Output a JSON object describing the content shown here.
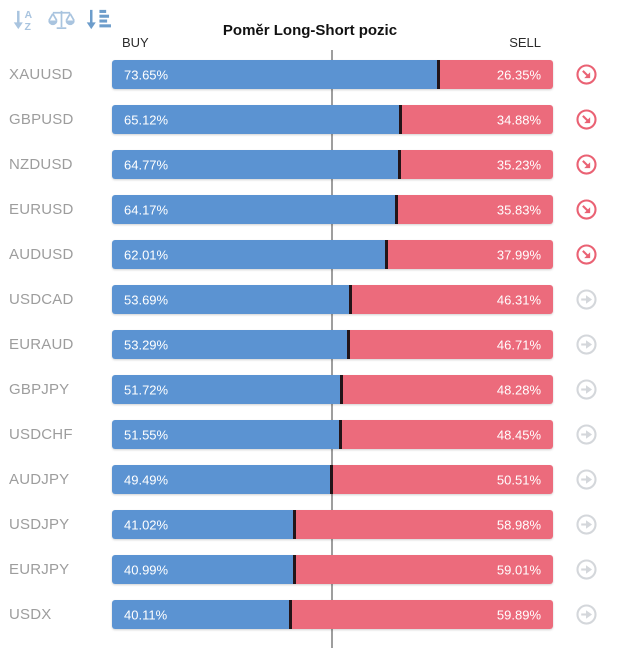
{
  "widget": {
    "title": "Poměr Long-Short pozic",
    "buy_label": "BUY",
    "sell_label": "SELL"
  },
  "toolbar": {
    "icons": [
      {
        "name": "sort-alphabetical-icon",
        "state": "inactive"
      },
      {
        "name": "balance-scale-icon",
        "state": "inactive"
      },
      {
        "name": "sort-amount-desc-icon",
        "state": "active"
      }
    ]
  },
  "colors": {
    "buy": "#5b93d2",
    "sell": "#ec6b7c",
    "divider": "#231418",
    "symbol_text": "#9d9d9d",
    "center_line": "#9e9e9e",
    "signal_red": "#ea6274",
    "neutral_gray": "#d4d7db",
    "sort_active": "#6d9dcb",
    "sort_inactive": "#a9c4df"
  },
  "rows": [
    {
      "symbol": "XAUUSD",
      "buy": "73.65%",
      "sell": "26.35%",
      "buy_pct": 73.65,
      "sell_pct": 26.35,
      "signal": "strong"
    },
    {
      "symbol": "GBPUSD",
      "buy": "65.12%",
      "sell": "34.88%",
      "buy_pct": 65.12,
      "sell_pct": 34.88,
      "signal": "strong"
    },
    {
      "symbol": "NZDUSD",
      "buy": "64.77%",
      "sell": "35.23%",
      "buy_pct": 64.77,
      "sell_pct": 35.23,
      "signal": "strong"
    },
    {
      "symbol": "EURUSD",
      "buy": "64.17%",
      "sell": "35.83%",
      "buy_pct": 64.17,
      "sell_pct": 35.83,
      "signal": "strong"
    },
    {
      "symbol": "AUDUSD",
      "buy": "62.01%",
      "sell": "37.99%",
      "buy_pct": 62.01,
      "sell_pct": 37.99,
      "signal": "strong"
    },
    {
      "symbol": "USDCAD",
      "buy": "53.69%",
      "sell": "46.31%",
      "buy_pct": 53.69,
      "sell_pct": 46.31,
      "signal": "neutral"
    },
    {
      "symbol": "EURAUD",
      "buy": "53.29%",
      "sell": "46.71%",
      "buy_pct": 53.29,
      "sell_pct": 46.71,
      "signal": "neutral"
    },
    {
      "symbol": "GBPJPY",
      "buy": "51.72%",
      "sell": "48.28%",
      "buy_pct": 51.72,
      "sell_pct": 48.28,
      "signal": "neutral"
    },
    {
      "symbol": "USDCHF",
      "buy": "51.55%",
      "sell": "48.45%",
      "buy_pct": 51.55,
      "sell_pct": 48.45,
      "signal": "neutral"
    },
    {
      "symbol": "AUDJPY",
      "buy": "49.49%",
      "sell": "50.51%",
      "buy_pct": 49.49,
      "sell_pct": 50.51,
      "signal": "neutral"
    },
    {
      "symbol": "USDJPY",
      "buy": "41.02%",
      "sell": "58.98%",
      "buy_pct": 41.02,
      "sell_pct": 58.98,
      "signal": "neutral"
    },
    {
      "symbol": "EURJPY",
      "buy": "40.99%",
      "sell": "59.01%",
      "buy_pct": 40.99,
      "sell_pct": 59.01,
      "signal": "neutral"
    },
    {
      "symbol": "USDX",
      "buy": "40.11%",
      "sell": "59.89%",
      "buy_pct": 40.11,
      "sell_pct": 59.89,
      "signal": "neutral"
    }
  ],
  "chart_data": {
    "type": "bar",
    "title": "Poměr Long-Short pozic",
    "categories": [
      "XAUUSD",
      "GBPUSD",
      "NZDUSD",
      "EURUSD",
      "AUDUSD",
      "USDCAD",
      "EURAUD",
      "GBPJPY",
      "USDCHF",
      "AUDJPY",
      "USDJPY",
      "EURJPY",
      "USDX"
    ],
    "series": [
      {
        "name": "BUY",
        "values": [
          73.65,
          65.12,
          64.77,
          64.17,
          62.01,
          53.69,
          53.29,
          51.72,
          51.55,
          49.49,
          41.02,
          40.99,
          40.11
        ]
      },
      {
        "name": "SELL",
        "values": [
          26.35,
          34.88,
          35.23,
          35.83,
          37.99,
          46.31,
          46.71,
          48.28,
          48.45,
          50.51,
          58.98,
          59.01,
          59.89
        ]
      }
    ],
    "orientation": "horizontal-stacked",
    "xlim": [
      0,
      100
    ],
    "reference_line": 50,
    "grid": false,
    "legend_position": "top (BUY left, SELL right)"
  }
}
